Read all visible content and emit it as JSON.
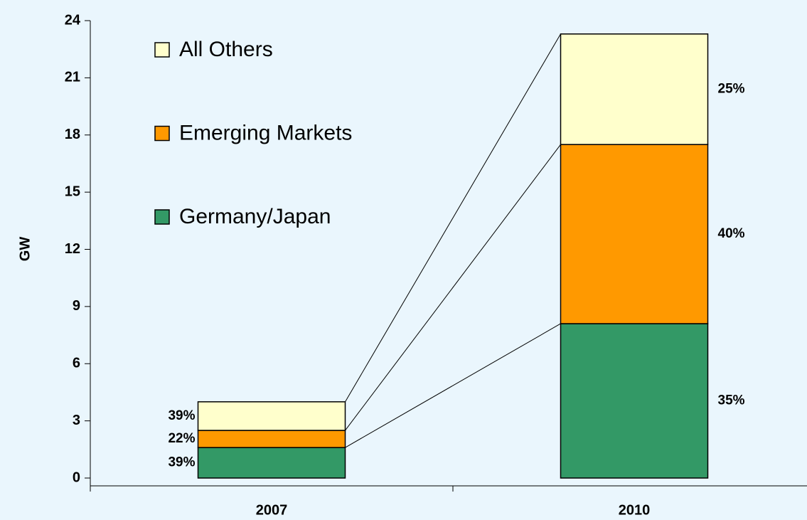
{
  "chart_data": {
    "type": "stacked_bar",
    "y_label": "GW",
    "categories": [
      "2007",
      "2010"
    ],
    "series": [
      {
        "name": "Germany/Japan",
        "color": "#339966",
        "values": [
          1.6,
          8.1
        ],
        "labels": [
          "39%",
          "35%"
        ]
      },
      {
        "name": "Emerging Markets",
        "color": "#ff9900",
        "values": [
          0.9,
          9.4
        ],
        "labels": [
          "22%",
          "40%"
        ]
      },
      {
        "name": "All Others",
        "color": "#ffffcc",
        "values": [
          1.5,
          5.8
        ],
        "labels": [
          "39%",
          "25%"
        ]
      }
    ],
    "ylim": [
      0,
      24
    ],
    "yticks": [
      0,
      3,
      6,
      9,
      12,
      15,
      18,
      21,
      24
    ]
  }
}
